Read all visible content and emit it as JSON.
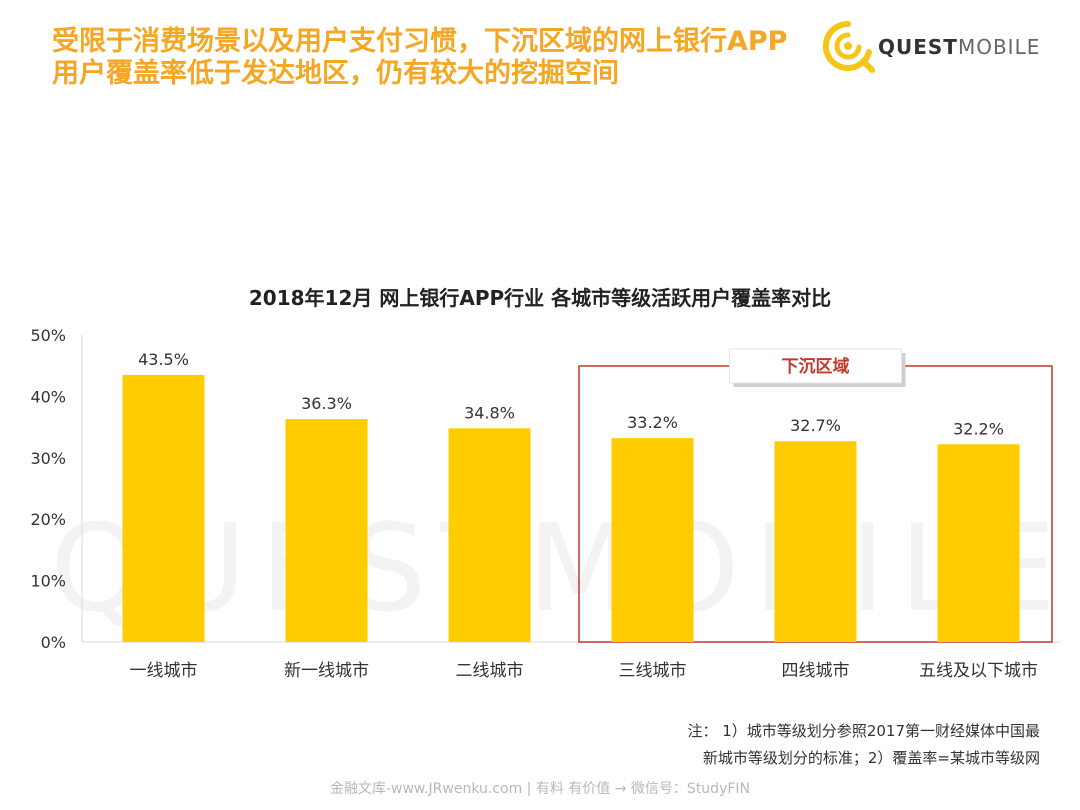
{
  "headline": "受限于消费场景以及用户支付习惯，下沉区域的网上银行APP用户覆盖率低于发达地区，仍有较大的挖掘空间",
  "brand": {
    "name_bold": "QUEST",
    "name_light": "MOBILE",
    "watermark": "QUESTMOBILE",
    "color": "#F5C518"
  },
  "chart_data": {
    "type": "bar",
    "title": "2018年12月 网上银行APP行业 各城市等级活跃用户覆盖率对比",
    "categories": [
      "一线城市",
      "新一线城市",
      "二线城市",
      "三线城市",
      "四线城市",
      "五线及以下城市"
    ],
    "values": [
      43.5,
      36.3,
      34.8,
      33.2,
      32.7,
      32.2
    ],
    "value_labels": [
      "43.5%",
      "36.3%",
      "34.8%",
      "33.2%",
      "32.7%",
      "32.2%"
    ],
    "y_ticks": [
      "0%",
      "10%",
      "20%",
      "30%",
      "40%",
      "50%"
    ],
    "ylim": [
      0,
      50
    ],
    "grid": false,
    "bar_color": "#FFCC00",
    "highlight": {
      "label": "下沉区域",
      "categories": [
        "三线城市",
        "四线城市",
        "五线及以下城市"
      ],
      "color": "#C0392B"
    }
  },
  "note": {
    "line1": "注： 1）城市等级划分参照2017第一财经媒体中国最",
    "line2": "新城市等级划分的标准；2）覆盖率=某城市等级网"
  },
  "footer": "金融文库-www.JRwenku.com | 有料 有价值 → 微信号：StudyFIN"
}
